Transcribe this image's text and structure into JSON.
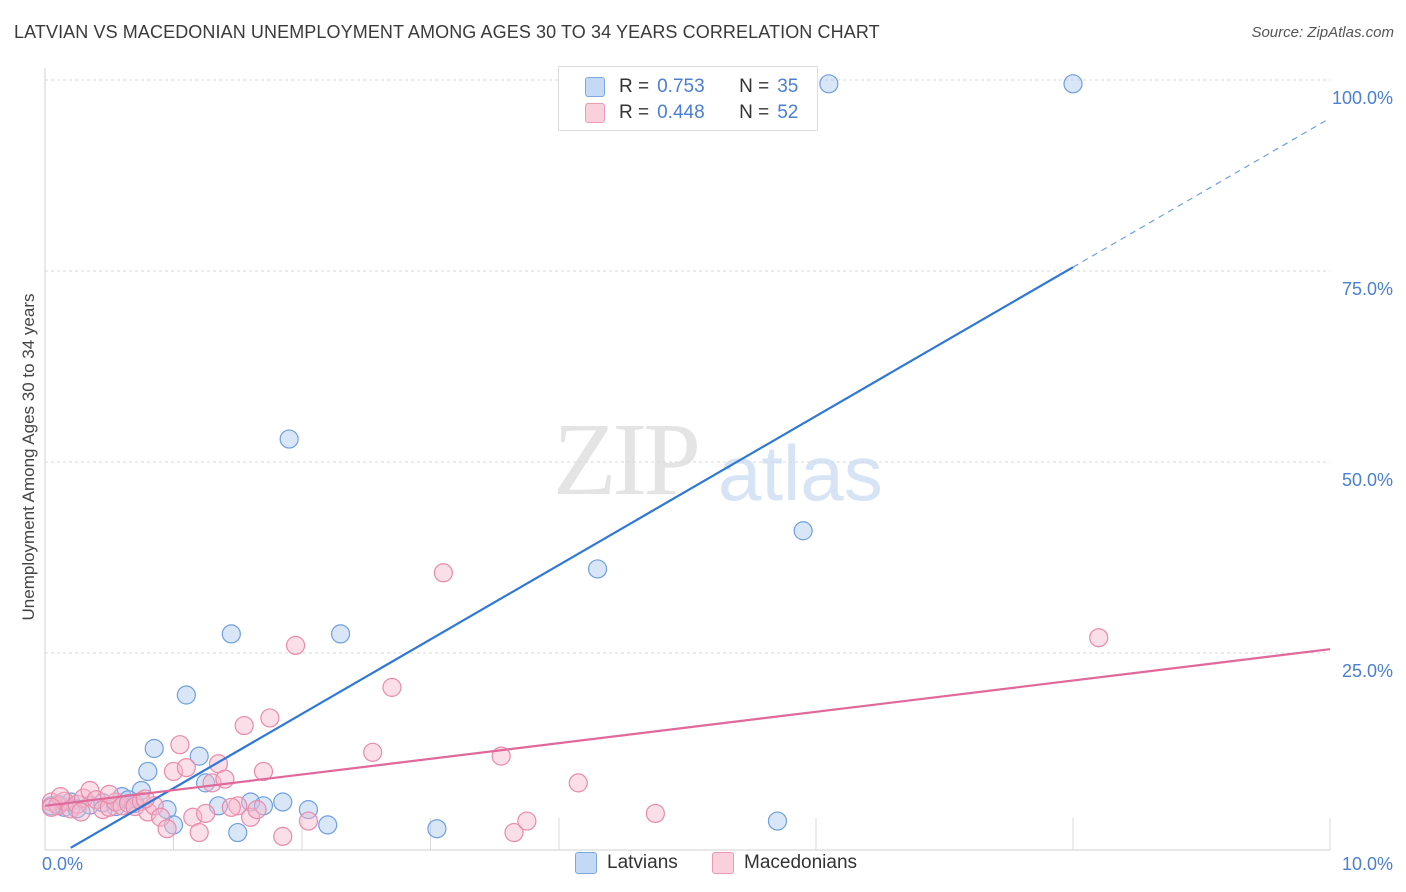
{
  "title": "LATVIAN VS MACEDONIAN UNEMPLOYMENT AMONG AGES 30 TO 34 YEARS CORRELATION CHART",
  "source": "Source: ZipAtlas.com",
  "watermark": {
    "zip": "ZIP",
    "atlas": "atlas"
  },
  "legend": {
    "rows": [
      {
        "r_label": "R =",
        "r_value": "0.753",
        "n_label": "N =",
        "n_value": "35",
        "color": "#a9c8f0"
      },
      {
        "r_label": "R =",
        "r_value": "0.448",
        "n_label": "N =",
        "n_value": "52",
        "color": "#f6b8cc"
      }
    ]
  },
  "bottom_legend": {
    "latvians": "Latvians",
    "macedonians": "Macedonians"
  },
  "chart_data": {
    "type": "scatter",
    "ylabel": "Unemployment Among Ages 30 to 34 years",
    "xlabel": "",
    "xlim": [
      0,
      10
    ],
    "ylim": [
      0,
      100
    ],
    "x_tick_labels": [
      "0.0%",
      "10.0%"
    ],
    "y_tick_labels": [
      {
        "value": 25,
        "label": "25.0%"
      },
      {
        "value": 50,
        "label": "50.0%"
      },
      {
        "value": 75,
        "label": "75.0%"
      },
      {
        "value": 100,
        "label": "100.0%"
      }
    ],
    "grid": true,
    "series": [
      {
        "name": "Latvians",
        "color": "#a9c8f0",
        "edge": "#6f9fdd",
        "line_color": "#2f78d4",
        "trend": {
          "x0": 0.2,
          "y0": -0.5,
          "x1": 8.0,
          "y1": 75.5,
          "dash_to_x": 10.0,
          "dash_to_y": 95
        },
        "points": [
          [
            0.05,
            5.0
          ],
          [
            0.1,
            5.2
          ],
          [
            0.15,
            4.8
          ],
          [
            0.2,
            5.5
          ],
          [
            0.25,
            4.6
          ],
          [
            0.35,
            5.1
          ],
          [
            0.45,
            5.4
          ],
          [
            0.55,
            4.9
          ],
          [
            0.6,
            6.2
          ],
          [
            0.7,
            5.3
          ],
          [
            0.75,
            7.0
          ],
          [
            0.8,
            9.5
          ],
          [
            0.85,
            12.5
          ],
          [
            0.95,
            4.5
          ],
          [
            1.0,
            2.5
          ],
          [
            1.1,
            19.5
          ],
          [
            1.2,
            11.5
          ],
          [
            1.25,
            8.0
          ],
          [
            1.35,
            5.0
          ],
          [
            1.45,
            27.5
          ],
          [
            1.5,
            1.5
          ],
          [
            1.6,
            5.5
          ],
          [
            1.7,
            5.0
          ],
          [
            1.85,
            5.5
          ],
          [
            1.9,
            53.0
          ],
          [
            2.05,
            4.5
          ],
          [
            2.2,
            2.5
          ],
          [
            2.3,
            27.5
          ],
          [
            3.05,
            2.0
          ],
          [
            4.3,
            36.0
          ],
          [
            5.7,
            3.0
          ],
          [
            5.9,
            41.0
          ],
          [
            6.1,
            99.5
          ],
          [
            8.0,
            99.5
          ],
          [
            0.65,
            5.8
          ]
        ]
      },
      {
        "name": "Macedonians",
        "color": "#f6b8cc",
        "edge": "#e88aaa",
        "line_color": "#e0689a",
        "trend": {
          "x0": 0.0,
          "y0": 5.0,
          "x1": 10.0,
          "y1": 25.5
        },
        "points": [
          [
            0.05,
            5.5
          ],
          [
            0.1,
            5.0
          ],
          [
            0.15,
            5.6
          ],
          [
            0.2,
            4.6
          ],
          [
            0.25,
            5.2
          ],
          [
            0.3,
            6.0
          ],
          [
            0.35,
            7.0
          ],
          [
            0.4,
            5.8
          ],
          [
            0.45,
            4.5
          ],
          [
            0.5,
            4.8
          ],
          [
            0.55,
            5.5
          ],
          [
            0.6,
            5.0
          ],
          [
            0.65,
            5.3
          ],
          [
            0.7,
            4.9
          ],
          [
            0.75,
            5.6
          ],
          [
            0.8,
            4.2
          ],
          [
            0.85,
            5.0
          ],
          [
            0.9,
            3.5
          ],
          [
            0.95,
            2.0
          ],
          [
            1.0,
            9.5
          ],
          [
            1.05,
            13.0
          ],
          [
            1.1,
            10.0
          ],
          [
            1.15,
            3.5
          ],
          [
            1.2,
            1.5
          ],
          [
            1.25,
            4.0
          ],
          [
            1.3,
            8.0
          ],
          [
            1.35,
            10.5
          ],
          [
            1.4,
            8.5
          ],
          [
            1.5,
            5.0
          ],
          [
            1.55,
            15.5
          ],
          [
            1.6,
            3.5
          ],
          [
            1.65,
            4.5
          ],
          [
            1.7,
            9.5
          ],
          [
            1.75,
            16.5
          ],
          [
            1.85,
            1.0
          ],
          [
            1.95,
            26.0
          ],
          [
            2.05,
            3.0
          ],
          [
            2.55,
            12.0
          ],
          [
            2.7,
            20.5
          ],
          [
            3.1,
            35.5
          ],
          [
            3.55,
            11.5
          ],
          [
            3.65,
            1.5
          ],
          [
            3.75,
            3.0
          ],
          [
            4.15,
            8.0
          ],
          [
            4.75,
            4.0
          ],
          [
            8.2,
            27.0
          ],
          [
            0.12,
            6.2
          ],
          [
            0.28,
            4.2
          ],
          [
            0.5,
            6.5
          ],
          [
            0.78,
            5.9
          ],
          [
            1.45,
            4.8
          ],
          [
            0.05,
            4.8
          ]
        ]
      }
    ]
  }
}
